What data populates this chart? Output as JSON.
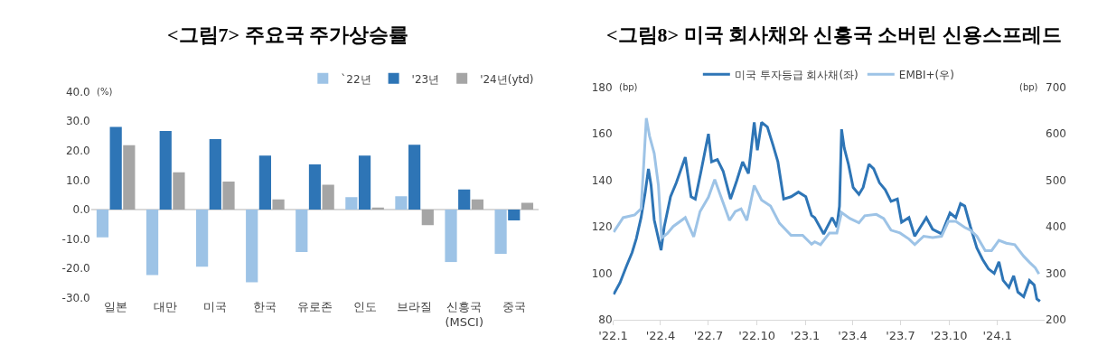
{
  "chart_data": [
    {
      "type": "bar",
      "title": "<그림7> 주요국 주가상승률",
      "categories": [
        "일본",
        "대만",
        "미국",
        "한국",
        "유로존",
        "인도",
        "브라질",
        "신흥국\n(MSCI)",
        "중국"
      ],
      "series": [
        {
          "name": "`22년",
          "color": "#9dc3e6",
          "values": [
            -9.4,
            -22.2,
            -19.4,
            -24.7,
            -14.4,
            4.2,
            4.5,
            -17.8,
            -15.0
          ]
        },
        {
          "name": "'23년",
          "color": "#2e75b6",
          "values": [
            28.0,
            26.6,
            23.9,
            18.3,
            15.3,
            18.3,
            22.0,
            6.8,
            -3.7
          ]
        },
        {
          "name": "'24년(ytd)",
          "color": "#a5a5a5",
          "values": [
            21.8,
            12.6,
            9.5,
            3.4,
            8.4,
            0.7,
            -5.3,
            3.4,
            2.3
          ]
        }
      ],
      "ylim": [
        -30,
        40
      ],
      "yticks": [
        {
          "value": -30,
          "label": "-30.0"
        },
        {
          "value": -20,
          "label": "-20.0"
        },
        {
          "value": -10,
          "label": "-10.0"
        },
        {
          "value": 0,
          "label": "0.0"
        },
        {
          "value": 10,
          "label": "10.0"
        },
        {
          "value": 20,
          "label": "20.0"
        },
        {
          "value": 30,
          "label": "30.0"
        },
        {
          "value": 40,
          "label": "40.0"
        }
      ],
      "annotations": [
        "(%)"
      ],
      "legend": "top right"
    },
    {
      "type": "line",
      "title": "<그림8> 미국 회사채와 신흥국 소버린 신용스프레드",
      "series": [
        {
          "name": "미국 투자등급 회사채(좌)",
          "color": "#2e75b6",
          "x": [
            "2022-01-02",
            "2022-01-14",
            "2022-01-26",
            "2022-02-06",
            "2022-02-14",
            "2022-02-23",
            "2022-03-03",
            "2022-03-09",
            "2022-03-14",
            "2022-03-20",
            "2022-03-28",
            "2022-04-02",
            "2022-04-08",
            "2022-04-20",
            "2022-05-01",
            "2022-05-18",
            "2022-05-29",
            "2022-06-06",
            "2022-06-17",
            "2022-07-01",
            "2022-07-07",
            "2022-07-18",
            "2022-07-29",
            "2022-08-12",
            "2022-08-24",
            "2022-09-04",
            "2022-09-15",
            "2022-09-26",
            "2022-10-02",
            "2022-10-10",
            "2022-10-21",
            "2022-11-01",
            "2022-11-10",
            "2022-11-21",
            "2022-12-05",
            "2022-12-19",
            "2023-01-02",
            "2023-01-13",
            "2023-01-19",
            "2023-02-05",
            "2023-02-21",
            "2023-03-02",
            "2023-03-07",
            "2023-03-11",
            "2023-03-16",
            "2023-03-24",
            "2023-04-02",
            "2023-04-13",
            "2023-04-21",
            "2023-05-02",
            "2023-05-11",
            "2023-05-22",
            "2023-06-02",
            "2023-06-13",
            "2023-06-25",
            "2023-07-03",
            "2023-07-17",
            "2023-07-28",
            "2023-08-08",
            "2023-08-19",
            "2023-08-31",
            "2023-09-17",
            "2023-10-03",
            "2023-10-14",
            "2023-10-23",
            "2023-10-31",
            "2023-11-11",
            "2023-11-23",
            "2023-12-04",
            "2023-12-15",
            "2023-12-26",
            "2024-01-04",
            "2024-01-12",
            "2024-01-23",
            "2024-02-01",
            "2024-02-09",
            "2024-02-20",
            "2024-03-02",
            "2024-03-11",
            "2024-03-16",
            "2024-03-22"
          ],
          "values": [
            91,
            96,
            103,
            109,
            115,
            124,
            135,
            145,
            138,
            123,
            115,
            110,
            120,
            133,
            139,
            150,
            133,
            132,
            144,
            160,
            148,
            149,
            144,
            132,
            140,
            148,
            143,
            165,
            153,
            165,
            163,
            155,
            148,
            132,
            133,
            135,
            133,
            125,
            124,
            117,
            124,
            120,
            129,
            162,
            154,
            147,
            137,
            134,
            137,
            147,
            145,
            139,
            136,
            131,
            132,
            122,
            124,
            116,
            120,
            124,
            119,
            117,
            126,
            124,
            130,
            129,
            120,
            111,
            106,
            102,
            100,
            105,
            97,
            94,
            99,
            92,
            90,
            97,
            95,
            89,
            88
          ]
        },
        {
          "name": "EMBI+(우)",
          "color": "#9dc3e6",
          "axis": "y2",
          "x": [
            "2022-01-02",
            "2022-01-20",
            "2022-02-11",
            "2022-02-23",
            "2022-02-28",
            "2022-03-05",
            "2022-03-11",
            "2022-03-20",
            "2022-03-28",
            "2022-04-03",
            "2022-04-14",
            "2022-04-25",
            "2022-05-18",
            "2022-06-03",
            "2022-06-15",
            "2022-07-01",
            "2022-07-13",
            "2022-07-29",
            "2022-08-10",
            "2022-08-21",
            "2022-09-01",
            "2022-09-12",
            "2022-09-26",
            "2022-10-10",
            "2022-10-27",
            "2022-11-13",
            "2022-12-05",
            "2022-12-27",
            "2023-01-13",
            "2023-01-19",
            "2023-01-30",
            "2023-02-16",
            "2023-03-02",
            "2023-03-11",
            "2023-03-27",
            "2023-04-13",
            "2023-04-24",
            "2023-05-16",
            "2023-05-30",
            "2023-06-13",
            "2023-06-30",
            "2023-07-17",
            "2023-07-28",
            "2023-08-14",
            "2023-08-31",
            "2023-09-17",
            "2023-09-30",
            "2023-10-14",
            "2023-10-31",
            "2023-11-11",
            "2023-11-23",
            "2023-12-09",
            "2023-12-21",
            "2024-01-04",
            "2024-01-18",
            "2024-02-03",
            "2024-02-20",
            "2024-03-02",
            "2024-03-13",
            "2024-03-20"
          ],
          "values": [
            389,
            420,
            426,
            439,
            533,
            634,
            596,
            558,
            489,
            376,
            386,
            401,
            420,
            379,
            433,
            464,
            502,
            452,
            414,
            433,
            439,
            414,
            489,
            458,
            445,
            408,
            382,
            382,
            363,
            368,
            362,
            387,
            387,
            431,
            418,
            409,
            424,
            427,
            418,
            393,
            387,
            374,
            362,
            380,
            377,
            380,
            412,
            412,
            399,
            393,
            380,
            349,
            349,
            371,
            365,
            362,
            337,
            324,
            312,
            299
          ]
        }
      ],
      "xlim": [
        "2022-01-01",
        "2024-03-31"
      ],
      "xticks": [
        {
          "value": "2022-01-01",
          "label": "'22.1"
        },
        {
          "value": "2022-04-01",
          "label": "'22.4"
        },
        {
          "value": "2022-07-01",
          "label": "'22.7"
        },
        {
          "value": "2022-10-01",
          "label": "'22.10"
        },
        {
          "value": "2023-01-01",
          "label": "'23.1"
        },
        {
          "value": "2023-04-01",
          "label": "'23.4"
        },
        {
          "value": "2023-07-01",
          "label": "'23.7"
        },
        {
          "value": "2023-10-01",
          "label": "'23.10"
        },
        {
          "value": "2024-01-01",
          "label": "'24.1"
        }
      ],
      "ylim": [
        80,
        180
      ],
      "yticks": [
        80,
        100,
        120,
        140,
        160,
        180
      ],
      "y2lim": [
        200,
        700
      ],
      "y2ticks": [
        200,
        300,
        400,
        500,
        600,
        700
      ],
      "annotations": [
        "(bp)",
        "(bp)"
      ],
      "legend": "top"
    }
  ]
}
